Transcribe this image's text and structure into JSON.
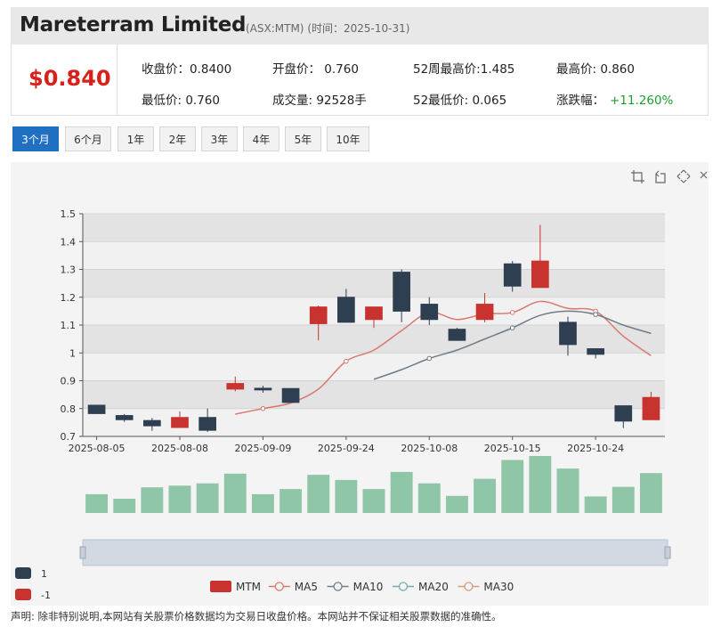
{
  "header": {
    "company": "Mareterram Limited",
    "ticker": "(ASX:MTM)",
    "date_text": "(时间：2025-10-31)"
  },
  "quote": {
    "price": "$0.840",
    "close": "收盘价：0.8400",
    "open": "开盘价： 0.760",
    "high52": "52周最高价:1.485",
    "high": "最高价: 0.860",
    "low": "最低价: 0.760",
    "volume": "成交量: 92528手",
    "low52": "52最低价: 0.065",
    "change_label": "涨跌幅：",
    "change_value": "+11.260%"
  },
  "tabs": [
    {
      "label": "3个月",
      "active": true
    },
    {
      "label": "6个月",
      "active": false
    },
    {
      "label": "1年",
      "active": false
    },
    {
      "label": "2年",
      "active": false
    },
    {
      "label": "3年",
      "active": false
    },
    {
      "label": "4年",
      "active": false
    },
    {
      "label": "5年",
      "active": false
    },
    {
      "label": "10年",
      "active": false
    }
  ],
  "toolbar_icons": [
    "zoom-select-icon",
    "zoom-reset-icon",
    "restore-icon",
    "save-icon"
  ],
  "colors": {
    "up": "#c8322f",
    "down": "#2e3f51",
    "volume": "#8fc6a8",
    "ma5": "#d97870",
    "ma10": "#707c88",
    "ma20": "#78a9b5",
    "ma30": "#d99a80",
    "accent": "#1f70c1",
    "price": "#d9211b",
    "change": "#1e9e2d"
  },
  "chart_data": {
    "type": "candlestick",
    "ylim": [
      0.7,
      1.5
    ],
    "y_ticks": [
      "1.5",
      "1.4",
      "1.3",
      "1.2",
      "1.1",
      "1",
      "0.9",
      "0.8",
      "0.7"
    ],
    "x_tick_labels": [
      "2025-08-05",
      "2025-08-08",
      "2025-09-09",
      "2025-09-24",
      "2025-10-08",
      "2025-10-15",
      "2025-10-24"
    ],
    "x_tick_index": [
      0,
      3,
      6,
      9,
      12,
      15,
      18
    ],
    "candles": [
      {
        "o": 0.812,
        "c": 0.782,
        "h": 0.812,
        "l": 0.782
      },
      {
        "o": 0.775,
        "c": 0.76,
        "h": 0.78,
        "l": 0.752
      },
      {
        "o": 0.757,
        "c": 0.738,
        "h": 0.766,
        "l": 0.72
      },
      {
        "o": 0.732,
        "c": 0.768,
        "h": 0.79,
        "l": 0.732
      },
      {
        "o": 0.768,
        "c": 0.722,
        "h": 0.8,
        "l": 0.716
      },
      {
        "o": 0.87,
        "c": 0.89,
        "h": 0.915,
        "l": 0.862
      },
      {
        "o": 0.873,
        "c": 0.867,
        "h": 0.882,
        "l": 0.857
      },
      {
        "o": 0.872,
        "c": 0.822,
        "h": 0.872,
        "l": 0.822
      },
      {
        "o": 1.105,
        "c": 1.165,
        "h": 1.17,
        "l": 1.045
      },
      {
        "o": 1.2,
        "c": 1.11,
        "h": 1.23,
        "l": 1.11
      },
      {
        "o": 1.12,
        "c": 1.165,
        "h": 1.165,
        "l": 1.09
      },
      {
        "o": 1.29,
        "c": 1.15,
        "h": 1.3,
        "l": 1.11
      },
      {
        "o": 1.175,
        "c": 1.12,
        "h": 1.2,
        "l": 1.1
      },
      {
        "o": 1.085,
        "c": 1.045,
        "h": 1.09,
        "l": 1.045
      },
      {
        "o": 1.12,
        "c": 1.175,
        "h": 1.215,
        "l": 1.11
      },
      {
        "o": 1.32,
        "c": 1.24,
        "h": 1.33,
        "l": 1.22
      },
      {
        "o": 1.235,
        "c": 1.33,
        "h": 1.46,
        "l": 1.235
      },
      {
        "o": 1.11,
        "c": 1.03,
        "h": 1.13,
        "l": 0.99
      },
      {
        "o": 1.015,
        "c": 0.995,
        "h": 1.015,
        "l": 0.98
      },
      {
        "o": 0.81,
        "c": 0.755,
        "h": 0.81,
        "l": 0.73
      },
      {
        "o": 0.76,
        "c": 0.84,
        "h": 0.86,
        "l": 0.76
      }
    ],
    "volume": [
      0.33,
      0.25,
      0.45,
      0.48,
      0.52,
      0.69,
      0.33,
      0.42,
      0.67,
      0.58,
      0.42,
      0.72,
      0.52,
      0.3,
      0.6,
      0.93,
      1.0,
      0.78,
      0.29,
      0.46,
      0.7
    ],
    "ma5": [
      null,
      null,
      null,
      null,
      null,
      0.78,
      0.8,
      0.82,
      0.87,
      0.97,
      1.01,
      1.08,
      1.145,
      1.12,
      1.14,
      1.145,
      1.185,
      1.16,
      1.15,
      1.06,
      0.99
    ],
    "ma10": [
      null,
      null,
      null,
      null,
      null,
      null,
      null,
      null,
      null,
      null,
      0.905,
      0.94,
      0.98,
      1.01,
      1.05,
      1.09,
      1.135,
      1.15,
      1.138,
      1.1,
      1.07
    ],
    "ma5_markers": [
      6,
      9,
      12,
      15,
      18
    ],
    "ma10_markers": [
      12,
      15,
      18
    ],
    "legend": [
      "MTM",
      "MA5",
      "MA10",
      "MA20",
      "MA30"
    ],
    "visual_map": [
      {
        "label": "1"
      },
      {
        "label": "-1"
      }
    ]
  },
  "disclaimer": "声明: 除非特别说明,本网站有关股票价格数据均为交易日收盘价格。本网站并不保证相关股票数据的准确性。"
}
